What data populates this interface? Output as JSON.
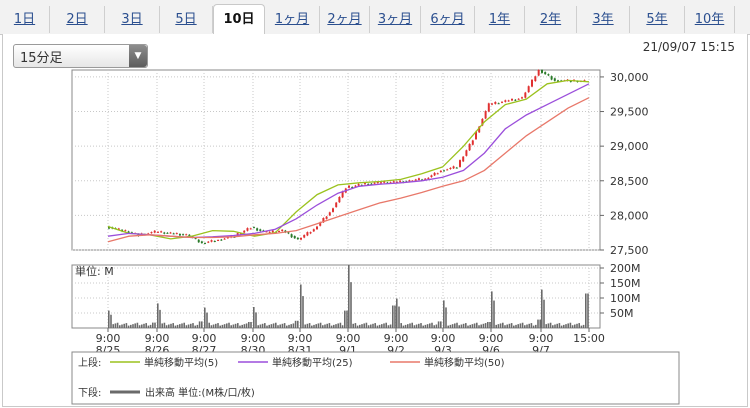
{
  "tabs": [
    {
      "label": "1日"
    },
    {
      "label": "2日"
    },
    {
      "label": "3日"
    },
    {
      "label": "5日"
    },
    {
      "label": "10日",
      "active": true
    },
    {
      "label": "1ヶ月"
    },
    {
      "label": "2ヶ月"
    },
    {
      "label": "3ヶ月"
    },
    {
      "label": "6ヶ月"
    },
    {
      "label": "1年"
    },
    {
      "label": "2年"
    },
    {
      "label": "3年"
    },
    {
      "label": "5年"
    },
    {
      "label": "10年"
    }
  ],
  "interval_select": {
    "value": "15分足"
  },
  "timestamp": "21/09/07 15:15",
  "colors": {
    "ma5": "#9bc21e",
    "ma25": "#9b4fdb",
    "ma50": "#e8786a",
    "up": "#e03030",
    "down": "#2a7a2a",
    "volume": "#6a6a6a",
    "grid": "#c8c8c8"
  },
  "chart_data": [
    {
      "type": "line",
      "ylim": [
        27500,
        30100
      ],
      "yticks": [
        27500,
        28000,
        28500,
        29000,
        29500,
        30000
      ],
      "ytick_labels": [
        "27,500",
        "28,000",
        "28,500",
        "29,000",
        "29,500",
        "30,000"
      ],
      "x_time_labels": [
        "9:00",
        "9:00",
        "9:00",
        "9:00",
        "9:00",
        "9:00",
        "9:00",
        "9:00",
        "9:00",
        "9:00",
        "15:00"
      ],
      "x_date_labels": [
        "8/25",
        "8/26",
        "8/27",
        "8/30",
        "8/31",
        "9/1",
        "9/2",
        "9/3",
        "9/6",
        "9/7",
        ""
      ],
      "price_path": [
        [
          "8/25 9:00",
          27840
        ],
        [
          "8/25 12:00",
          27780
        ],
        [
          "8/25 15:00",
          27720
        ],
        [
          "8/26 9:00",
          27760
        ],
        [
          "8/26 12:00",
          27740
        ],
        [
          "8/26 15:00",
          27720
        ],
        [
          "8/27 9:00",
          27600
        ],
        [
          "8/27 12:00",
          27650
        ],
        [
          "8/27 15:00",
          27700
        ],
        [
          "8/30 9:00",
          27830
        ],
        [
          "8/30 12:00",
          27750
        ],
        [
          "8/30 15:00",
          27780
        ],
        [
          "8/31 9:00",
          27650
        ],
        [
          "8/31 12:00",
          27800
        ],
        [
          "8/31 15:00",
          28050
        ],
        [
          "9/1 9:00",
          28400
        ],
        [
          "9/1 12:00",
          28450
        ],
        [
          "9/1 15:00",
          28470
        ],
        [
          "9/2 9:00",
          28480
        ],
        [
          "9/2 12:00",
          28500
        ],
        [
          "9/2 15:00",
          28530
        ],
        [
          "9/3 9:00",
          28650
        ],
        [
          "9/3 12:00",
          28700
        ],
        [
          "9/3 15:00",
          29100
        ],
        [
          "9/6 9:00",
          29600
        ],
        [
          "9/6 12:00",
          29650
        ],
        [
          "9/6 15:00",
          29700
        ],
        [
          "9/7 9:00",
          30100
        ],
        [
          "9/7 12:00",
          29950
        ],
        [
          "9/7 15:00",
          29940
        ]
      ],
      "series": [
        {
          "name": "単純移動平均(5)",
          "color": "#9bc21e",
          "values": [
            27840,
            27740,
            27720,
            27660,
            27700,
            27780,
            27770,
            27700,
            27750,
            28050,
            28300,
            28440,
            28470,
            28490,
            28520,
            28600,
            28700,
            29000,
            29350,
            29600,
            29680,
            29900,
            29950,
            29930
          ]
        },
        {
          "name": "単純移動平均(25)",
          "color": "#9b4fdb",
          "values": [
            27700,
            27740,
            27720,
            27700,
            27680,
            27690,
            27710,
            27740,
            27800,
            27950,
            28150,
            28320,
            28420,
            28450,
            28470,
            28500,
            28550,
            28650,
            28900,
            29250,
            29450,
            29600,
            29750,
            29900
          ]
        },
        {
          "name": "単純移動平均(50)",
          "color": "#e8786a",
          "values": [
            27620,
            27700,
            27720,
            27700,
            27680,
            27680,
            27690,
            27720,
            27740,
            27780,
            27880,
            27980,
            28080,
            28180,
            28250,
            28330,
            28420,
            28500,
            28650,
            28900,
            29150,
            29350,
            29550,
            29700
          ]
        }
      ]
    },
    {
      "type": "bar",
      "label": "単位: M",
      "ylim": [
        0,
        210
      ],
      "yticks": [
        50,
        100,
        150,
        200
      ],
      "ytick_labels": [
        "50M",
        "100M",
        "150M",
        "200M"
      ],
      "days": [
        "8/25",
        "8/26",
        "8/27",
        "8/30",
        "8/31",
        "9/1",
        "9/2",
        "9/3",
        "9/6",
        "9/7"
      ],
      "open_volume": [
        48,
        72,
        58,
        60,
        135,
        200,
        88,
        82,
        112,
        118
      ],
      "close_volume": [
        18,
        22,
        20,
        24,
        58,
        75,
        22,
        20,
        28,
        115
      ]
    }
  ],
  "legend": {
    "upper_label": "上段:",
    "lower_label": "下段:",
    "lower_text": "出来高 単位:(M株/口/枚)"
  }
}
